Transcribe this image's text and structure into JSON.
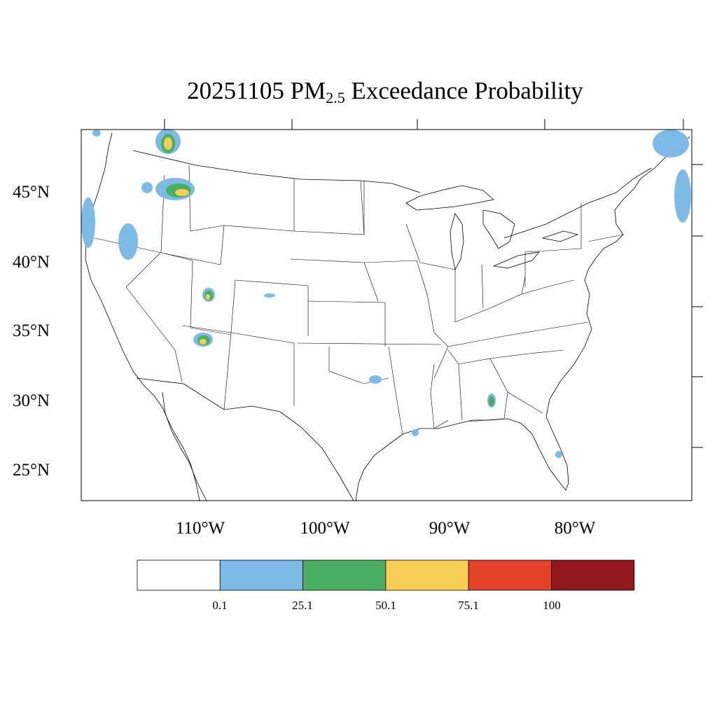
{
  "title": {
    "date": "20251105",
    "pollutant": "PM",
    "pollutant_sub": "2.5",
    "suffix": "Exceedance Probability"
  },
  "axes": {
    "lat_labels": [
      "45°N",
      "40°N",
      "35°N",
      "30°N",
      "25°N"
    ],
    "lon_labels": [
      "110°W",
      "100°W",
      "90°W",
      "80°W"
    ]
  },
  "colorbar": {
    "colors": [
      "#ffffff",
      "#7dbbe6",
      "#4aae62",
      "#f7cf55",
      "#e2432a",
      "#93181d"
    ],
    "labels": [
      "0.1",
      "25.1",
      "50.1",
      "75.1",
      "100"
    ]
  },
  "legend_colors": {
    "low": "#7dbbe6",
    "mid": "#4aae62",
    "high": "#f7cf55"
  }
}
